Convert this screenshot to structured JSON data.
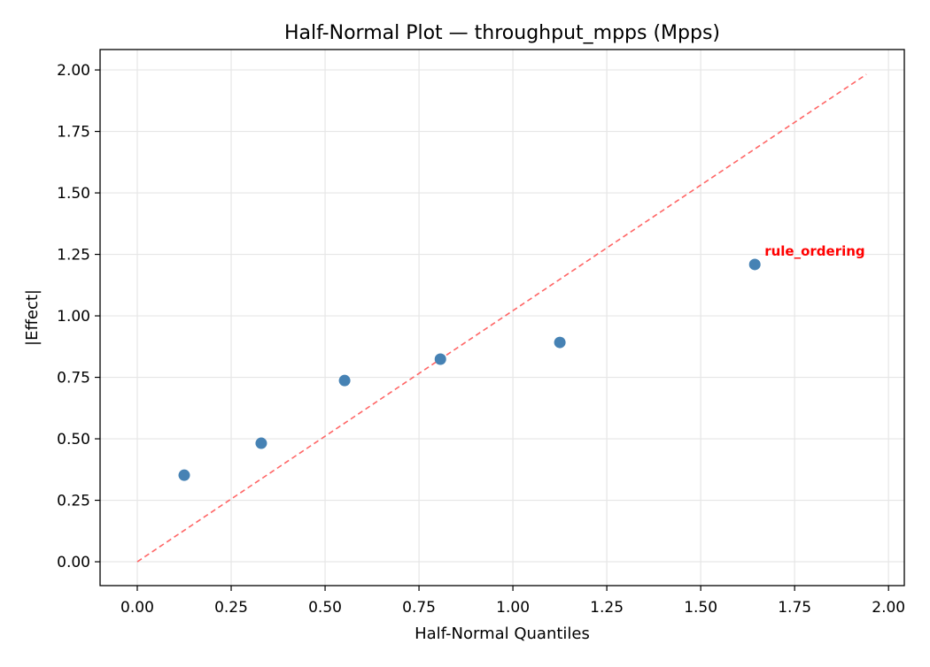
{
  "chart_data": {
    "type": "scatter",
    "title": "Half-Normal Plot — throughput_mpps (Mpps)",
    "xlabel": "Half-Normal Quantiles",
    "ylabel": "|Effect|",
    "xlim": [
      -0.099,
      2.042
    ],
    "ylim": [
      -0.097,
      2.083
    ],
    "xticks": [
      "0.00",
      "0.25",
      "0.50",
      "0.75",
      "1.00",
      "1.25",
      "1.50",
      "1.75",
      "2.00"
    ],
    "yticks": [
      "0.00",
      "0.25",
      "0.50",
      "0.75",
      "1.00",
      "1.25",
      "1.50",
      "1.75",
      "2.00"
    ],
    "grid": true,
    "points": [
      {
        "x": 0.125,
        "y": 0.352
      },
      {
        "x": 0.33,
        "y": 0.482
      },
      {
        "x": 0.552,
        "y": 0.737
      },
      {
        "x": 0.807,
        "y": 0.824
      },
      {
        "x": 1.125,
        "y": 0.892
      },
      {
        "x": 1.644,
        "y": 1.209,
        "label": "rule_ordering"
      }
    ],
    "reference_line": {
      "x": [
        0,
        1.941
      ],
      "y": [
        0,
        1.982
      ],
      "style": "dashed"
    },
    "colors": {
      "points": "#4682b4",
      "reference_line": "#ff6666",
      "annotation": "#ff0000",
      "grid": "#e6e6e6"
    }
  }
}
